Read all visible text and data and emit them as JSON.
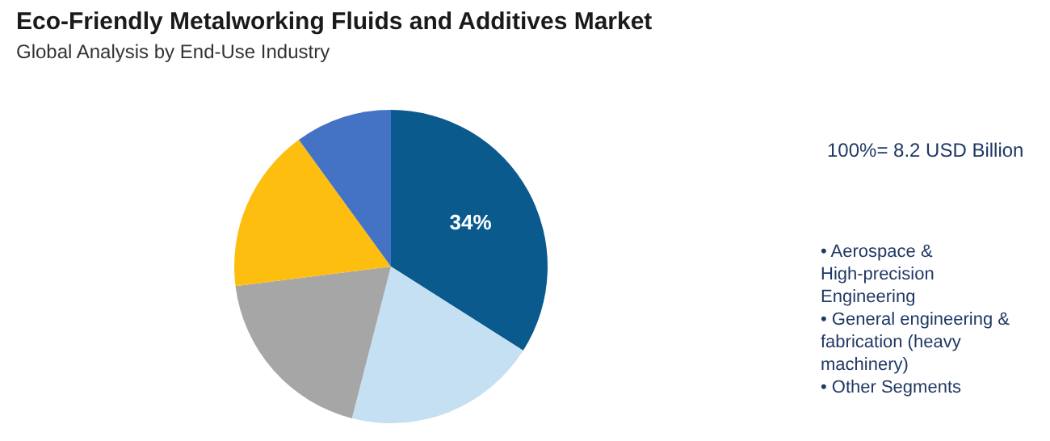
{
  "chart_data": {
    "type": "pie",
    "title": "Eco-Friendly Metalworking Fluids and Additives Market",
    "subtitle": "Global Analysis by End-Use Industry",
    "categories": [
      null,
      null,
      null,
      null,
      null
    ],
    "values": [
      34,
      20,
      19,
      17,
      10
    ],
    "colors": [
      "#0b5a8e",
      "#c5e0f3",
      "#a6a6a6",
      "#fdbe10",
      "#4472c4"
    ],
    "value_labels": [
      "34%",
      null,
      null,
      null,
      null
    ],
    "annotations": [
      "100%= 8.2 USD Billion",
      "• Aerospace & High-precision Engineering",
      "• General engineering & fabrication (heavy machinery)",
      "• Other Segments"
    ]
  }
}
